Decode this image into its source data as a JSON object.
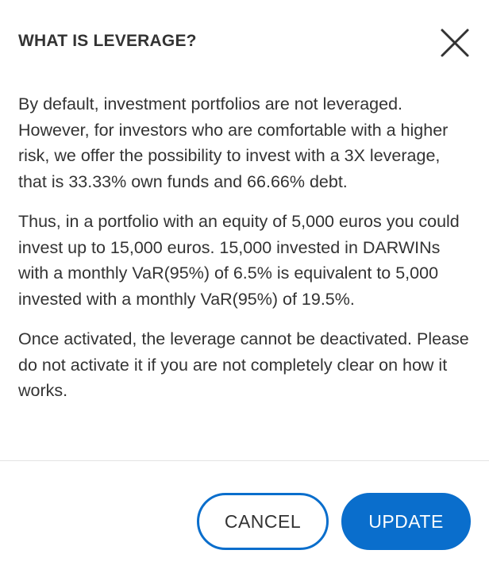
{
  "dialog": {
    "title": "WHAT IS LEVERAGE?",
    "close_icon": "close-icon",
    "paragraphs": [
      "By default, investment portfolios are not leveraged. However, for investors who are comfortable with a higher risk, we offer the possibility to invest with a 3X leverage, that is 33.33% own funds and 66.66% debt.",
      "Thus, in a portfolio with an equity of 5,000 euros you could invest up to 15,000 euros. 15,000 invested in DARWINs with a monthly VaR(95%) of 6.5% is equivalent to 5,000 invested with a monthly VaR(95%) of 19.5%.",
      "Once activated, the leverage cannot be deactivated. Please do not activate it if you are not completely clear on how it works."
    ],
    "cancel_label": "CANCEL",
    "update_label": "UPDATE"
  },
  "colors": {
    "accent": "#0a6ecc",
    "text": "#333333",
    "divider": "#e3e3e3",
    "background": "#ffffff"
  }
}
